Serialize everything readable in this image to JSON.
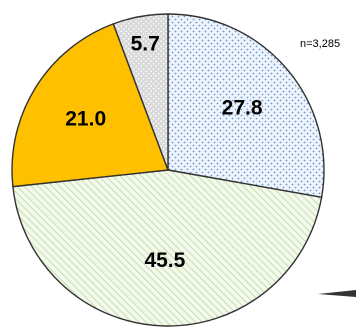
{
  "sample_note": "n=3,285",
  "chart_data": {
    "type": "pie",
    "slices": [
      {
        "label": "27.8",
        "value": 27.8,
        "fill": "#e8f0fb",
        "pattern": "blue-dots"
      },
      {
        "label": "45.5",
        "value": 45.5,
        "fill": "#eef6e4",
        "pattern": "green-hatch"
      },
      {
        "label": "21.0",
        "value": 21.0,
        "fill": "#ffc000",
        "pattern": "solid"
      },
      {
        "label": "5.7",
        "value": 5.7,
        "fill": "#d9d9d9",
        "pattern": "light-dots"
      }
    ],
    "start_angle_deg": 0,
    "direction": "clockwise",
    "outline_color": "#333333"
  }
}
